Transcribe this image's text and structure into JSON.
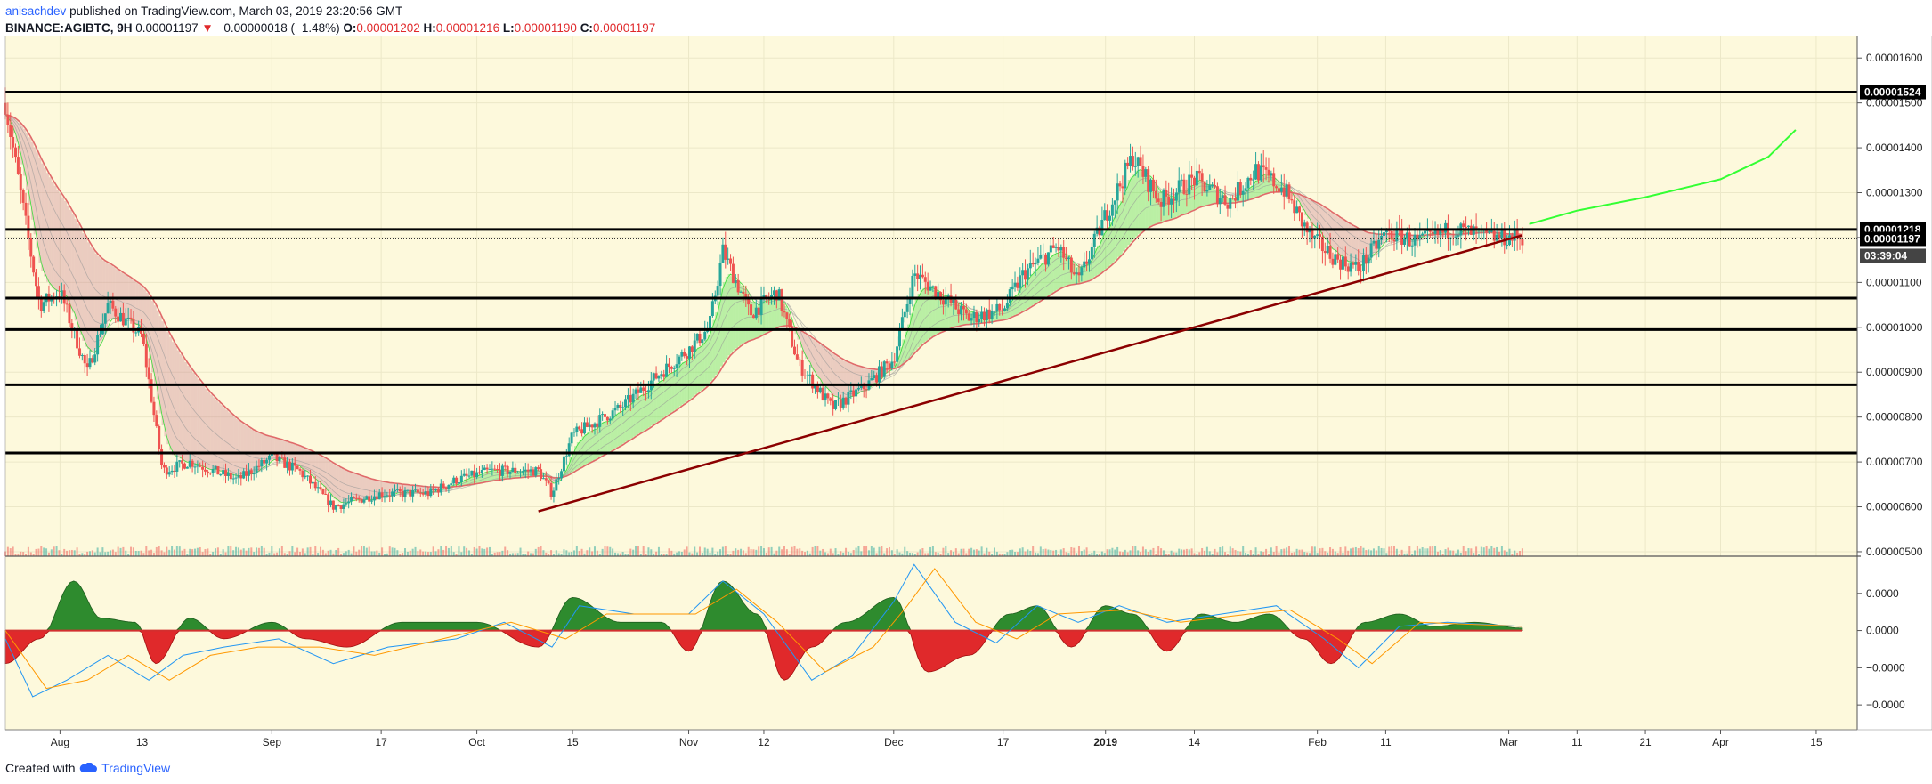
{
  "header": {
    "author": "anisachdev",
    "published": "published on TradingView.com, March 03, 2019 23:20:56 GMT",
    "symbol": "BINANCE:AGIBTC, 9H",
    "last": "0.00001197",
    "change_arrow": "▼",
    "change": "−0.00000018 (−1.48%)",
    "o_label": "O:",
    "o_value": "0.00001202",
    "h_label": "H:",
    "h_value": "0.00001216",
    "l_label": "L:",
    "l_value": "0.00001190",
    "c_label": "C:",
    "c_value": "0.00001197"
  },
  "footer": {
    "created": "Created with",
    "brand": "TradingView",
    "logo_icon": "tradingview-cloud-icon"
  },
  "colors": {
    "background": "#fdf9dc",
    "up": "#26a69a",
    "down": "#ef5350",
    "trendline": "#8b0000",
    "forecast": "#33ff33",
    "level": "#000000",
    "macd_pos": "#2e8b2e",
    "macd_neg": "#e0292b",
    "macd_line": "#2196f3",
    "signal_line": "#ff9800"
  },
  "chart_data": [
    {
      "type": "candlestick",
      "ylim": [
        4.9e-06,
        1.65e-05
      ],
      "y_ticks": [
        "0.00001600",
        "0.00001500",
        "0.00001400",
        "0.00001300",
        "0.00001200",
        "0.00001100",
        "0.00001000",
        "0.00000900",
        "0.00000800",
        "0.00000700",
        "0.00000600",
        "0.00000500"
      ],
      "x_ticks": [
        "Aug",
        "13",
        "Sep",
        "17",
        "Oct",
        "15",
        "Nov",
        "12",
        "Dec",
        "17",
        "2019",
        "14",
        "Feb",
        "11",
        "Mar",
        "11",
        "21",
        "Apr",
        "15"
      ],
      "grid": true,
      "horizontal_levels": [
        1.524e-05,
        1.218e-05,
        1.065e-05,
        9.95e-06,
        8.72e-06,
        7.2e-06
      ],
      "price_badges": [
        "0.00001524",
        "0.00001218",
        "0.00001197",
        "03:39:04"
      ],
      "trendline": {
        "from": [
          "Oct 10",
          5.9e-06
        ],
        "to": [
          "Mar 03",
          1.205e-05
        ]
      },
      "forecast_curve": [
        [
          "Mar 04",
          1.23e-05
        ],
        [
          "Mar 11",
          1.26e-05
        ],
        [
          "Mar 21",
          1.29e-05
        ],
        [
          "Apr 01",
          1.33e-05
        ],
        [
          "Apr 08",
          1.38e-05
        ],
        [
          "Apr 12",
          1.44e-05
        ]
      ],
      "price_path": [
        [
          "Jul 24",
          1.5e-05
        ],
        [
          "Jul 29",
          1.05e-05
        ],
        [
          "Aug 01",
          1.08e-05
        ],
        [
          "Aug 05",
          9e-06
        ],
        [
          "Aug 08",
          1.05e-05
        ],
        [
          "Aug 13",
          9.8e-06
        ],
        [
          "Aug 16",
          6.8e-06
        ],
        [
          "Aug 20",
          7e-06
        ],
        [
          "Aug 27",
          6.6e-06
        ],
        [
          "Sep 01",
          7.1e-06
        ],
        [
          "Sep 05",
          6.8e-06
        ],
        [
          "Sep 10",
          6e-06
        ],
        [
          "Sep 17",
          6.3e-06
        ],
        [
          "Sep 24",
          6.3e-06
        ],
        [
          "Sep 28",
          6.6e-06
        ],
        [
          "Oct 03",
          6.8e-06
        ],
        [
          "Oct 10",
          6.8e-06
        ],
        [
          "Oct 12",
          6.3e-06
        ],
        [
          "Oct 15",
          7.6e-06
        ],
        [
          "Oct 22",
          8.2e-06
        ],
        [
          "Oct 28",
          9e-06
        ],
        [
          "Nov 01",
          9.5e-06
        ],
        [
          "Nov 04",
          1e-05
        ],
        [
          "Nov 06",
          1.17e-05
        ],
        [
          "Nov 10",
          1.03e-05
        ],
        [
          "Nov 14",
          1.08e-05
        ],
        [
          "Nov 17",
          9.2e-06
        ],
        [
          "Nov 22",
          8.2e-06
        ],
        [
          "Nov 27",
          8.7e-06
        ],
        [
          "Dec 01",
          9.3e-06
        ],
        [
          "Dec 04",
          1.12e-05
        ],
        [
          "Dec 08",
          1.07e-05
        ],
        [
          "Dec 12",
          1.02e-05
        ],
        [
          "Dec 17",
          1.04e-05
        ],
        [
          "Dec 20",
          1.12e-05
        ],
        [
          "Dec 25",
          1.18e-05
        ],
        [
          "Dec 28",
          1.1e-05
        ],
        [
          "Jan 01",
          1.25e-05
        ],
        [
          "Jan 05",
          1.38e-05
        ],
        [
          "Jan 09",
          1.28e-05
        ],
        [
          "Jan 14",
          1.33e-05
        ],
        [
          "Jan 19",
          1.28e-05
        ],
        [
          "Jan 23",
          1.35e-05
        ],
        [
          "Jan 27",
          1.31e-05
        ],
        [
          "Jan 31",
          1.2e-05
        ],
        [
          "Feb 04",
          1.15e-05
        ],
        [
          "Feb 07",
          1.13e-05
        ],
        [
          "Feb 11",
          1.21e-05
        ],
        [
          "Feb 16",
          1.19e-05
        ],
        [
          "Feb 21",
          1.22e-05
        ],
        [
          "Feb 26",
          1.2e-05
        ],
        [
          "Mar 03",
          1.2e-05
        ]
      ],
      "volume_spikes": [
        [
          "Oct 12",
          5.4e-07
        ],
        [
          "Oct 14",
          5.3e-07
        ],
        [
          "Nov 04",
          6.4e-07
        ],
        [
          "Nov 07",
          7.8e-07
        ],
        [
          "Dec 05",
          6.2e-07
        ],
        [
          "Feb 20",
          5.4e-07
        ]
      ]
    },
    {
      "type": "macd",
      "ylim": [
        -1.2e-05,
        9e-06
      ],
      "y_ticks": [
        "0.0000",
        "0.0000",
        "−0.0000",
        "−0.0000",
        "−0.0000"
      ],
      "zero_line": 0,
      "histogram": [
        [
          "Jul 24",
          -4e-06
        ],
        [
          "Jul 29",
          -1e-06
        ],
        [
          "Aug 03",
          6e-06
        ],
        [
          "Aug 07",
          1.5e-06
        ],
        [
          "Aug 12",
          1e-06
        ],
        [
          "Aug 15",
          -4e-06
        ],
        [
          "Aug 20",
          1.5e-06
        ],
        [
          "Aug 25",
          -1e-06
        ],
        [
          "Sep 01",
          1e-06
        ],
        [
          "Sep 06",
          -1e-06
        ],
        [
          "Sep 12",
          -2e-06
        ],
        [
          "Sep 20",
          1e-06
        ],
        [
          "Oct 01",
          1e-06
        ],
        [
          "Oct 10",
          -2e-06
        ],
        [
          "Oct 15",
          4e-06
        ],
        [
          "Oct 22",
          1e-06
        ],
        [
          "Oct 28",
          1e-06
        ],
        [
          "Nov 01",
          -2.5e-06
        ],
        [
          "Nov 06",
          6e-06
        ],
        [
          "Nov 11",
          2e-06
        ],
        [
          "Nov 15",
          -6e-06
        ],
        [
          "Nov 19",
          -2e-06
        ],
        [
          "Nov 24",
          1e-06
        ],
        [
          "Dec 01",
          4e-06
        ],
        [
          "Dec 06",
          -5e-06
        ],
        [
          "Dec 12",
          -3e-06
        ],
        [
          "Dec 18",
          2e-06
        ],
        [
          "Dec 22",
          3e-06
        ],
        [
          "Dec 27",
          -2e-06
        ],
        [
          "Jan 01",
          3e-06
        ],
        [
          "Jan 05",
          2e-06
        ],
        [
          "Jan 10",
          -2.5e-06
        ],
        [
          "Jan 15",
          2e-06
        ],
        [
          "Jan 20",
          1e-06
        ],
        [
          "Jan 25",
          2e-06
        ],
        [
          "Jan 30",
          -1e-06
        ],
        [
          "Feb 03",
          -4e-06
        ],
        [
          "Feb 08",
          1e-06
        ],
        [
          "Feb 13",
          2e-06
        ],
        [
          "Feb 18",
          5e-07
        ],
        [
          "Feb 24",
          1e-06
        ],
        [
          "Mar 03",
          3e-07
        ]
      ],
      "macd_line": [
        [
          "Jul 24",
          -1e-06
        ],
        [
          "Jul 28",
          -8e-06
        ],
        [
          "Aug 02",
          -6e-06
        ],
        [
          "Aug 08",
          -3e-06
        ],
        [
          "Aug 14",
          -6e-06
        ],
        [
          "Aug 19",
          -3e-06
        ],
        [
          "Aug 25",
          -2e-06
        ],
        [
          "Sep 02",
          -1e-06
        ],
        [
          "Sep 10",
          -4e-06
        ],
        [
          "Sep 18",
          -2e-06
        ],
        [
          "Sep 28",
          -1e-06
        ],
        [
          "Oct 05",
          1e-06
        ],
        [
          "Oct 12",
          -2e-06
        ],
        [
          "Oct 16",
          3e-06
        ],
        [
          "Oct 24",
          2e-06
        ],
        [
          "Nov 01",
          2e-06
        ],
        [
          "Nov 06",
          6e-06
        ],
        [
          "Nov 12",
          2e-06
        ],
        [
          "Nov 19",
          -6e-06
        ],
        [
          "Nov 25",
          -3e-06
        ],
        [
          "Dec 01",
          3.5e-06
        ],
        [
          "Dec 04",
          8e-06
        ],
        [
          "Dec 10",
          1e-06
        ],
        [
          "Dec 16",
          -1.5e-06
        ],
        [
          "Dec 22",
          3e-06
        ],
        [
          "Dec 28",
          1e-06
        ],
        [
          "Jan 03",
          3e-06
        ],
        [
          "Jan 10",
          1e-06
        ],
        [
          "Jan 18",
          2e-06
        ],
        [
          "Jan 26",
          3e-06
        ],
        [
          "Feb 02",
          -1e-06
        ],
        [
          "Feb 07",
          -4.5e-06
        ],
        [
          "Feb 13",
          5e-07
        ],
        [
          "Feb 20",
          1e-06
        ],
        [
          "Mar 03",
          5e-07
        ]
      ],
      "signal_line": [
        [
          "Jul 24",
          0.0
        ],
        [
          "Jul 30",
          -7e-06
        ],
        [
          "Aug 05",
          -6e-06
        ],
        [
          "Aug 11",
          -3e-06
        ],
        [
          "Aug 17",
          -6e-06
        ],
        [
          "Aug 23",
          -3e-06
        ],
        [
          "Aug 30",
          -2e-06
        ],
        [
          "Sep 08",
          -2e-06
        ],
        [
          "Sep 16",
          -3e-06
        ],
        [
          "Sep 26",
          -1e-06
        ],
        [
          "Oct 06",
          1e-06
        ],
        [
          "Oct 14",
          -1e-06
        ],
        [
          "Oct 20",
          2e-06
        ],
        [
          "Nov 02",
          2e-06
        ],
        [
          "Nov 08",
          5e-06
        ],
        [
          "Nov 14",
          1e-06
        ],
        [
          "Nov 21",
          -5e-06
        ],
        [
          "Nov 28",
          -2e-06
        ],
        [
          "Dec 03",
          3e-06
        ],
        [
          "Dec 07",
          7.5e-06
        ],
        [
          "Dec 13",
          1e-06
        ],
        [
          "Dec 19",
          -1e-06
        ],
        [
          "Dec 25",
          2e-06
        ],
        [
          "Jan 04",
          2.5e-06
        ],
        [
          "Jan 12",
          1e-06
        ],
        [
          "Jan 22",
          2e-06
        ],
        [
          "Jan 28",
          2.5e-06
        ],
        [
          "Feb 04",
          -1e-06
        ],
        [
          "Feb 09",
          -4e-06
        ],
        [
          "Feb 16",
          1e-06
        ],
        [
          "Mar 03",
          5e-07
        ]
      ]
    }
  ]
}
